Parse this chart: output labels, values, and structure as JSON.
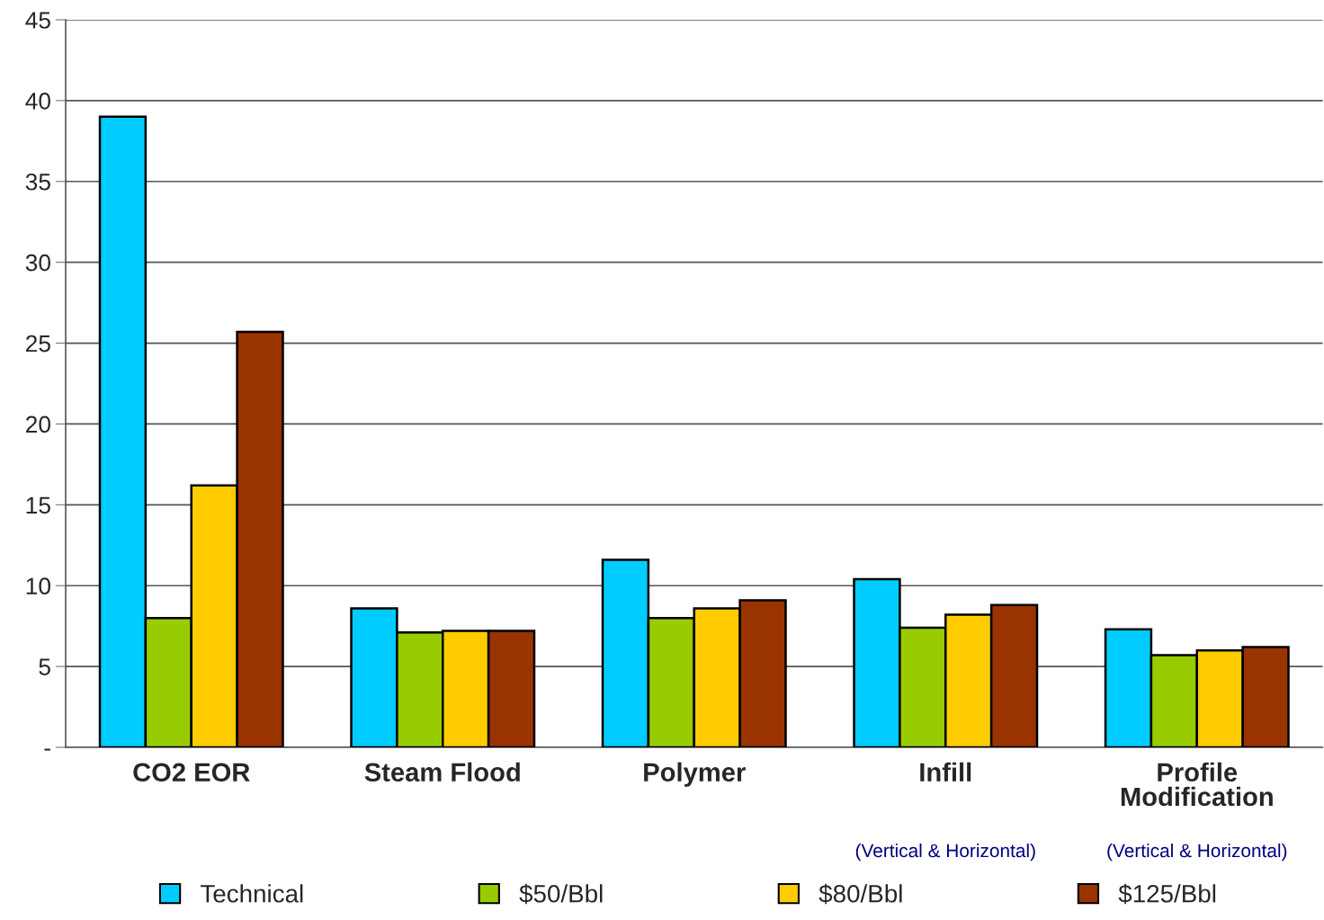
{
  "chart_data": {
    "type": "bar",
    "categories": [
      "CO2 EOR",
      "Steam Flood",
      "Polymer",
      "Infill",
      "Profile\nModification"
    ],
    "series": [
      {
        "name": "Technical",
        "color": "#00ccff",
        "values": [
          39.0,
          8.6,
          11.6,
          10.4,
          7.3
        ]
      },
      {
        "name": "$50/Bbl",
        "color": "#99cc00",
        "values": [
          8.0,
          7.1,
          8.0,
          7.4,
          5.7
        ]
      },
      {
        "name": "$80/Bbl",
        "color": "#ffcc00",
        "values": [
          16.2,
          7.2,
          8.6,
          8.2,
          6.0
        ]
      },
      {
        "name": "$125/Bbl",
        "color": "#993300",
        "values": [
          25.7,
          7.2,
          9.1,
          8.8,
          6.2
        ]
      }
    ],
    "ylim": [
      0,
      45
    ],
    "yticks": [
      {
        "value": 0,
        "label": "-"
      },
      5,
      10,
      15,
      20,
      25,
      30,
      35,
      40,
      45
    ],
    "grid": "y",
    "legend": "bottom",
    "annotations": [
      "(Vertical & Horizontal)",
      "(Vertical & Horizontal)"
    ]
  }
}
